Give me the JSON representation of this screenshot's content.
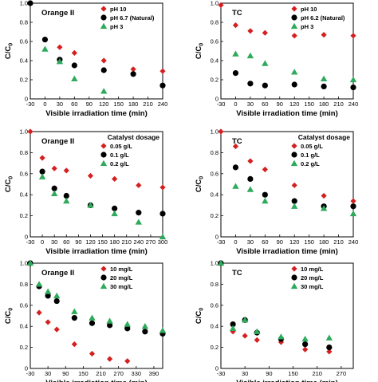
{
  "figure": {
    "y_axis_label": "C/C",
    "y_axis_subscript": "0"
  },
  "chart_data": [
    {
      "type": "scatter",
      "title": "Orange II",
      "legend_title": "",
      "xlabel": "Visible irradiation time (min)",
      "ylabel": "C/C0",
      "xlim": [
        -30,
        240
      ],
      "ylim": [
        0,
        1.0
      ],
      "xticks": [
        "-30",
        "0",
        "30",
        "60",
        "90",
        "120",
        "150",
        "180",
        "210",
        "240"
      ],
      "yticks": [
        "0",
        "0.2",
        "0.4",
        "0.6",
        "0.8",
        "1.0"
      ],
      "legend_position": "top-right",
      "series": [
        {
          "name": "pH 10",
          "marker": "diamond",
          "color": "#d42020",
          "x": [
            0,
            30,
            60,
            120,
            180,
            240
          ],
          "y": [
            0.62,
            0.54,
            0.48,
            0.4,
            0.31,
            0.29
          ]
        },
        {
          "name": "pH 6.7 (Natural)",
          "marker": "circle",
          "color": "#000000",
          "x": [
            -30,
            0,
            30,
            60,
            120,
            180,
            240
          ],
          "y": [
            1.0,
            0.62,
            0.41,
            0.35,
            0.3,
            0.26,
            0.14
          ]
        },
        {
          "name": "pH 3",
          "marker": "triangle",
          "color": "#2eaa5c",
          "x": [
            0,
            30,
            60,
            120
          ],
          "y": [
            0.52,
            0.39,
            0.21,
            0.08
          ]
        }
      ]
    },
    {
      "type": "scatter",
      "title": "TC",
      "legend_title": "",
      "xlabel": "Visible irradiation time (min)",
      "ylabel": "C/C0",
      "xlim": [
        -30,
        240
      ],
      "ylim": [
        0,
        1.0
      ],
      "xticks": [
        "-30",
        "0",
        "30",
        "60",
        "90",
        "120",
        "150",
        "180",
        "210",
        "240"
      ],
      "yticks": [
        "0",
        "0.2",
        "0.4",
        "0.6",
        "0.8",
        "1.0"
      ],
      "legend_position": "top-right",
      "series": [
        {
          "name": "pH 10",
          "marker": "diamond",
          "color": "#d42020",
          "x": [
            -30,
            0,
            30,
            60,
            120,
            180,
            240
          ],
          "y": [
            0.98,
            0.77,
            0.71,
            0.69,
            0.66,
            0.67,
            0.66
          ]
        },
        {
          "name": "pH 6.2 (Natural)",
          "marker": "circle",
          "color": "#000000",
          "x": [
            0,
            30,
            60,
            120,
            180,
            240
          ],
          "y": [
            0.27,
            0.16,
            0.14,
            0.15,
            0.13,
            0.12
          ]
        },
        {
          "name": "pH 3",
          "marker": "triangle",
          "color": "#2eaa5c",
          "x": [
            0,
            30,
            60,
            120,
            180,
            240
          ],
          "y": [
            0.47,
            0.45,
            0.37,
            0.28,
            0.21,
            0.2
          ]
        }
      ]
    },
    {
      "type": "scatter",
      "title": "Orange II",
      "legend_title": "Catalyst dosage",
      "xlabel": "Visible irradiation time (min)",
      "ylabel": "C/C0",
      "xlim": [
        -30,
        300
      ],
      "ylim": [
        0,
        1.0
      ],
      "xticks": [
        "-30",
        "0",
        "30",
        "60",
        "90",
        "120",
        "150",
        "180",
        "210",
        "240",
        "270",
        "300"
      ],
      "yticks": [
        "0",
        "0.2",
        "0.4",
        "0.6",
        "0.8",
        "1.0"
      ],
      "legend_position": "top-right",
      "series": [
        {
          "name": "0.05 g/L",
          "marker": "diamond",
          "color": "#d42020",
          "x": [
            -30,
            0,
            30,
            60,
            120,
            180,
            240,
            300
          ],
          "y": [
            1.0,
            0.75,
            0.65,
            0.63,
            0.58,
            0.55,
            0.49,
            0.47
          ]
        },
        {
          "name": "0.1 g/L",
          "marker": "circle",
          "color": "#000000",
          "x": [
            0,
            30,
            60,
            120,
            180,
            240,
            300
          ],
          "y": [
            0.62,
            0.46,
            0.39,
            0.3,
            0.27,
            0.23,
            0.22
          ]
        },
        {
          "name": "0.2 g/L",
          "marker": "triangle",
          "color": "#2eaa5c",
          "x": [
            0,
            30,
            60,
            120,
            180,
            240,
            300
          ],
          "y": [
            0.57,
            0.41,
            0.34,
            0.3,
            0.22,
            0.14,
            0.0
          ]
        }
      ]
    },
    {
      "type": "scatter",
      "title": "TC",
      "legend_title": "Catalyst dosage",
      "xlabel": "Visible irradiation time (min)",
      "ylabel": "C/C0",
      "xlim": [
        -30,
        240
      ],
      "ylim": [
        0,
        1.0
      ],
      "xticks": [
        "-30",
        "0",
        "30",
        "60",
        "90",
        "120",
        "150",
        "180",
        "210",
        "240"
      ],
      "yticks": [
        "0",
        "0.2",
        "0.4",
        "0.6",
        "0.8",
        "1.0"
      ],
      "legend_position": "top-right",
      "series": [
        {
          "name": "0.05 g/L",
          "marker": "diamond",
          "color": "#d42020",
          "x": [
            -30,
            0,
            30,
            60,
            120,
            180,
            240
          ],
          "y": [
            1.0,
            0.86,
            0.72,
            0.64,
            0.49,
            0.39,
            0.34
          ]
        },
        {
          "name": "0.1 g/L",
          "marker": "circle",
          "color": "#000000",
          "x": [
            0,
            30,
            60,
            120,
            180,
            240
          ],
          "y": [
            0.66,
            0.55,
            0.4,
            0.34,
            0.29,
            0.29
          ]
        },
        {
          "name": "0.2 g/L",
          "marker": "triangle",
          "color": "#2eaa5c",
          "x": [
            0,
            30,
            60,
            120,
            180,
            240
          ],
          "y": [
            0.48,
            0.45,
            0.34,
            0.29,
            0.27,
            0.22
          ]
        }
      ]
    },
    {
      "type": "scatter",
      "title": "Orange II",
      "legend_title": "",
      "xlabel": "Visible irradiation time (min)",
      "ylabel": "C/C0",
      "xlim": [
        -30,
        420
      ],
      "ylim": [
        0,
        1.0
      ],
      "xticks": [
        "-30",
        "30",
        "90",
        "150",
        "210",
        "270",
        "330",
        "390"
      ],
      "yticks": [
        "0",
        "0.2",
        "0.4",
        "0.6",
        "0.8",
        "1.0"
      ],
      "legend_position": "top-right",
      "series": [
        {
          "name": "10 mg/L",
          "marker": "diamond",
          "color": "#d42020",
          "x": [
            -30,
            0,
            30,
            60,
            120,
            180,
            240,
            300
          ],
          "y": [
            1.0,
            0.53,
            0.44,
            0.37,
            0.23,
            0.14,
            0.09,
            0.07
          ]
        },
        {
          "name": "20 mg/L",
          "marker": "circle",
          "color": "#000000",
          "x": [
            -30,
            0,
            30,
            60,
            120,
            180,
            240,
            300,
            360,
            420
          ],
          "y": [
            1.0,
            0.78,
            0.69,
            0.64,
            0.48,
            0.43,
            0.41,
            0.38,
            0.35,
            0.33
          ]
        },
        {
          "name": "30 mg/L",
          "marker": "triangle",
          "color": "#2eaa5c",
          "x": [
            -30,
            0,
            30,
            60,
            120,
            180,
            240,
            300,
            360,
            420
          ],
          "y": [
            1.0,
            0.8,
            0.73,
            0.69,
            0.54,
            0.48,
            0.45,
            0.42,
            0.4,
            0.36
          ]
        }
      ]
    },
    {
      "type": "scatter",
      "title": "TC",
      "legend_title": "",
      "xlabel": "Visible irradiation time (min)",
      "ylabel": "C/C0",
      "xlim": [
        -30,
        300
      ],
      "ylim": [
        0,
        1.0
      ],
      "xticks": [
        "-30",
        "30",
        "90",
        "150",
        "210",
        "270"
      ],
      "yticks": [
        "0",
        "0.2",
        "0.4",
        "0.6",
        "0.8",
        "1.0"
      ],
      "legend_position": "top-right",
      "series": [
        {
          "name": "10 mg/L",
          "marker": "diamond",
          "color": "#d42020",
          "x": [
            -30,
            0,
            30,
            60,
            120,
            180,
            240
          ],
          "y": [
            1.0,
            0.35,
            0.31,
            0.27,
            0.25,
            0.18,
            0.16
          ]
        },
        {
          "name": "20 mg/L",
          "marker": "circle",
          "color": "#000000",
          "x": [
            -30,
            0,
            30,
            60,
            120,
            180,
            240
          ],
          "y": [
            1.0,
            0.42,
            0.46,
            0.34,
            0.28,
            0.23,
            0.2
          ]
        },
        {
          "name": "30 mg/L",
          "marker": "triangle",
          "color": "#2eaa5c",
          "x": [
            -30,
            0,
            30,
            60,
            120,
            180,
            240
          ],
          "y": [
            1.0,
            0.38,
            0.46,
            0.35,
            0.3,
            0.28,
            0.29
          ]
        }
      ]
    }
  ]
}
